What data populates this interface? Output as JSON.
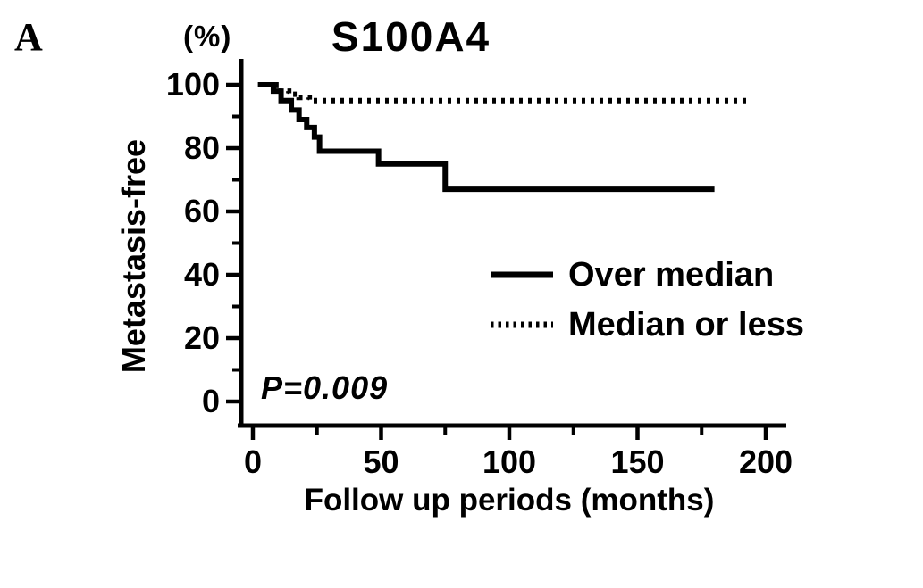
{
  "figure": {
    "panel_label": "A",
    "background_color": "#ffffff",
    "foreground_color": "#000000"
  },
  "chart_data": {
    "type": "line",
    "subtype": "kaplan-meier-step",
    "title": "S100A4",
    "xlabel": "Follow up periods (months)",
    "ylabel": "Metastasis-free",
    "y_unit": "(%)",
    "xlim": [
      0,
      200
    ],
    "ylim": [
      0,
      100
    ],
    "x_major_ticks": [
      0,
      50,
      100,
      150,
      200
    ],
    "x_minor_ticks": [
      25,
      75,
      125,
      175
    ],
    "y_major_ticks": [
      0,
      20,
      40,
      60,
      80,
      100
    ],
    "y_minor_ticks": [
      10,
      30,
      50,
      70,
      90
    ],
    "grid": false,
    "legend_position": "inside-right-center",
    "annotations": [
      {
        "text": "P=0.009",
        "x_months": 5,
        "y_percent": 5
      }
    ],
    "series": [
      {
        "name": "Over median",
        "line_style": "solid",
        "color": "#000000",
        "points": [
          [
            2,
            100
          ],
          [
            8,
            98
          ],
          [
            11,
            95
          ],
          [
            15,
            92
          ],
          [
            18,
            89
          ],
          [
            21,
            86.5
          ],
          [
            24,
            83.5
          ],
          [
            26,
            79
          ],
          [
            49,
            75
          ],
          [
            75,
            67
          ],
          [
            180,
            67
          ]
        ]
      },
      {
        "name": "Median or less",
        "line_style": "dotted",
        "color": "#000000",
        "points": [
          [
            2,
            100
          ],
          [
            9,
            98
          ],
          [
            14,
            97
          ],
          [
            18,
            96
          ],
          [
            22,
            95
          ],
          [
            193,
            95
          ]
        ]
      }
    ]
  }
}
